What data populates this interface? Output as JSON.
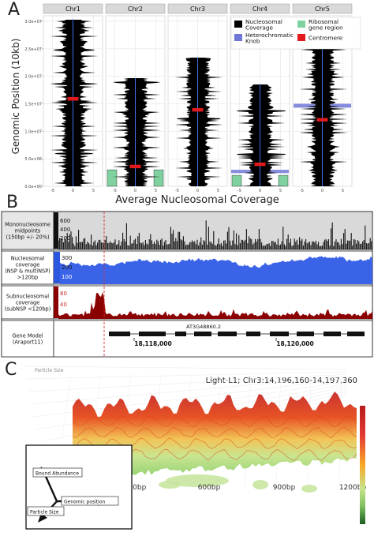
{
  "panel_letters": [
    "A",
    "B",
    "C"
  ],
  "panelA": {
    "ylabel": "Genomic Position (10kb)",
    "xlabel": "Average Nucleosomal Coverage",
    "legend": [
      {
        "label": "Nucleosomal\nCoverage",
        "color": "#000000"
      },
      {
        "label": "Ribosomal\ngene region",
        "color": "#7fd1a0"
      },
      {
        "label": "Heterochromatic\nKnob",
        "color": "#6f78d8"
      },
      {
        "label": "Centromere",
        "color": "#e31a1c"
      }
    ],
    "yticks": [
      "3.0e+07",
      "2.5e+07",
      "2.0e+07",
      "1.5e+07",
      "1.0e+07",
      "5.0e+06",
      "0.0e+00"
    ],
    "xticks": [
      "-5",
      "0",
      "5"
    ]
  },
  "panelB": {
    "tracks": [
      {
        "label": "Mononucleosome\nmidpoints\n(150bp +/- 20%)",
        "scale": [
          "600",
          "400",
          "200"
        ]
      },
      {
        "label": "Nucleosomal\ncoverage\n(NSP & multiNSP)\n>120bp",
        "scale": [
          "300",
          "200",
          "100"
        ]
      },
      {
        "label": "Subnucleosomal\ncoverage\n(subNSP <120bp)",
        "scale": [
          "80",
          "40"
        ]
      },
      {
        "label": "Gene Model\n(Araport11)",
        "scale": []
      }
    ],
    "gene_name": "AT3G48860.2",
    "coords": [
      "18,118,000",
      "18,120,000"
    ]
  },
  "panelC": {
    "title": "Light-L1; Chr3:14,196,160-14,197,360",
    "z_axis_label": "Particle Size",
    "x_ticks": [
      "0bp",
      "300bp",
      "600bp",
      "900bp",
      "1200bp"
    ],
    "inset_labels": [
      "Bound Abundance",
      "Genomic position",
      "Particle Size"
    ]
  },
  "chart_data": [
    {
      "type": "area",
      "panels": [
        "Chr1",
        "Chr2",
        "Chr3",
        "Chr4",
        "Chr5"
      ],
      "xlabel": "Average Nucleosomal Coverage",
      "ylabel": "Genomic Position (10kb)",
      "xlim": [
        -6,
        6
      ],
      "ylim": [
        0,
        31000000
      ],
      "series": [
        {
          "name": "Nucleosomal\nCoverage",
          "chromosome_length": [
            30400000,
            19700000,
            23500000,
            18600000,
            27000000
          ]
        },
        {
          "name": "Centromere",
          "centromere_position": [
            15900000,
            3600000,
            13900000,
            4000000,
            12100000
          ]
        }
      ],
      "heterochromatic_knob": {
        "Chr4": [
          2400000,
          3000000
        ],
        "Chr5": [
          14300000,
          15000000
        ]
      },
      "ribosomal_gene_region": {
        "Chr2": [
          0,
          3000000
        ],
        "Chr4": [
          0,
          2000000
        ]
      }
    },
    {
      "type": "bar",
      "tracks": [
        "Mononucleosome midpoints",
        "Nucleosomal coverage",
        "Subnucleosomal coverage"
      ],
      "x_range": [
        "18,115,500",
        "18,122,800"
      ],
      "y_max": [
        600,
        300,
        80
      ]
    },
    {
      "type": "area",
      "x": [
        0,
        300,
        600,
        900,
        1200
      ],
      "xlabel": "",
      "colorscale": [
        "#b71c1c",
        "#e53935",
        "#f9a825",
        "#c6e48b",
        "#7fbf5f",
        "#2e7d32"
      ]
    }
  ]
}
